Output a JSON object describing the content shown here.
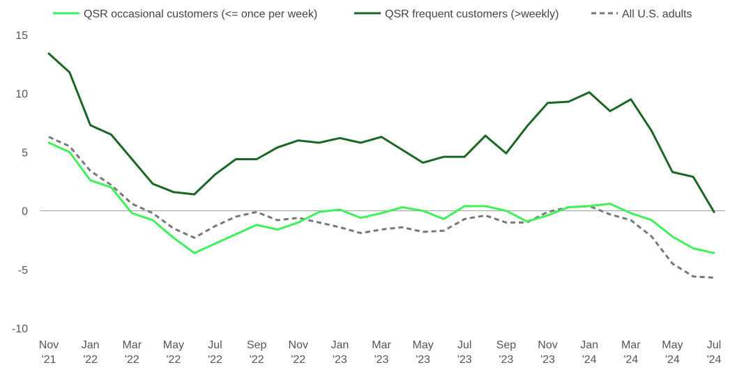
{
  "chart_data": {
    "type": "line",
    "y_ticks": [
      15,
      10,
      5,
      0,
      -5,
      -10
    ],
    "ylim": [
      -10,
      15
    ],
    "x_tick_labels": [
      [
        "Nov",
        "'21"
      ],
      [
        "Jan",
        "'22"
      ],
      [
        "Mar",
        "'22"
      ],
      [
        "May",
        "'22"
      ],
      [
        "Jul",
        "'22"
      ],
      [
        "Sep",
        "'22"
      ],
      [
        "Nov",
        "'22"
      ],
      [
        "Jan",
        "'23"
      ],
      [
        "Mar",
        "'23"
      ],
      [
        "May",
        "'23"
      ],
      [
        "Jul",
        "'23"
      ],
      [
        "Sep",
        "'23"
      ],
      [
        "Nov",
        "'23"
      ],
      [
        "Jan",
        "'24"
      ],
      [
        "Mar",
        "'24"
      ],
      [
        "May",
        "'24"
      ],
      [
        "Jul",
        "'24"
      ]
    ],
    "x": [
      "Nov '21",
      "Dec '21",
      "Jan '22",
      "Feb '22",
      "Mar '22",
      "Apr '22",
      "May '22",
      "Jun '22",
      "Jul '22",
      "Aug '22",
      "Sep '22",
      "Oct '22",
      "Nov '22",
      "Dec '22",
      "Jan '23",
      "Feb '23",
      "Mar '23",
      "Apr '23",
      "May '23",
      "Jun '23",
      "Jul '23",
      "Aug '23",
      "Sep '23",
      "Oct '23",
      "Nov '23",
      "Dec '23",
      "Jan '24",
      "Feb '24",
      "Mar '24",
      "Apr '24",
      "May '24",
      "Jun '24",
      "Jul '24"
    ],
    "legend_position": "top",
    "series": [
      {
        "name": "QSR occasional customers (<= once per week)",
        "color": "#3ff05a",
        "style": "solid",
        "values": [
          5.8,
          5.0,
          2.6,
          2.0,
          -0.2,
          -0.8,
          -2.3,
          -3.6,
          -2.8,
          -2.0,
          -1.2,
          -1.6,
          -1.0,
          -0.1,
          0.1,
          -0.6,
          -0.2,
          0.3,
          0.0,
          -0.7,
          0.4,
          0.4,
          0.0,
          -0.9,
          -0.4,
          0.3,
          0.4,
          0.6,
          -0.2,
          -0.8,
          -2.2,
          -3.2,
          -3.6
        ]
      },
      {
        "name": "QSR frequent customers (>weekly)",
        "color": "#1a6626",
        "style": "solid",
        "values": [
          13.4,
          11.8,
          7.3,
          6.5,
          4.4,
          2.3,
          1.6,
          1.4,
          3.1,
          4.4,
          4.4,
          5.4,
          6.0,
          5.8,
          6.2,
          5.8,
          6.3,
          5.2,
          4.1,
          4.6,
          4.6,
          6.4,
          4.9,
          7.2,
          9.2,
          9.3,
          10.1,
          8.5,
          9.5,
          6.8,
          3.3,
          2.9,
          -0.1
        ]
      },
      {
        "name": "All U.S. adults",
        "color": "#777777",
        "style": "dashed",
        "values": [
          6.3,
          5.5,
          3.4,
          2.2,
          0.6,
          -0.2,
          -1.5,
          -2.3,
          -1.3,
          -0.5,
          -0.1,
          -0.8,
          -0.6,
          -1.0,
          -1.4,
          -1.9,
          -1.6,
          -1.4,
          -1.8,
          -1.7,
          -0.7,
          -0.4,
          -1.0,
          -1.0,
          -0.1,
          0.3,
          0.4,
          -0.3,
          -0.8,
          -2.2,
          -4.5,
          -5.6,
          -5.7
        ]
      }
    ]
  }
}
